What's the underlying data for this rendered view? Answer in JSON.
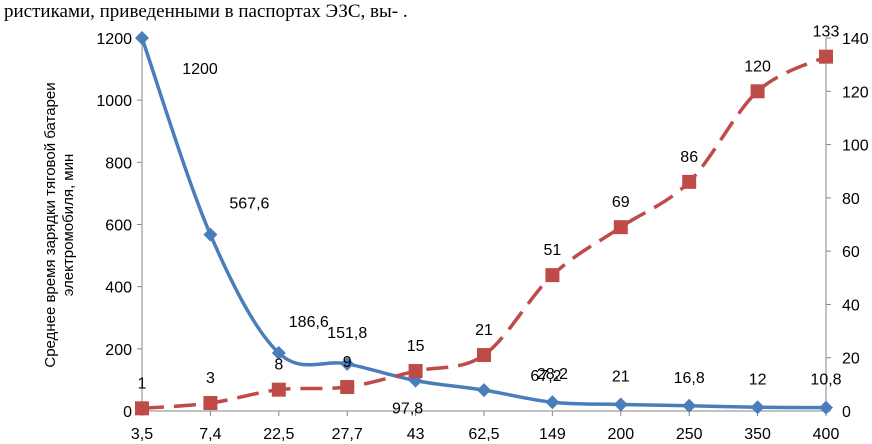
{
  "caption": "ристиками, приведенными в паспортах ЭЗС, вы-            .",
  "chart_data": {
    "type": "line",
    "categories": [
      "3,5",
      "7,4",
      "22,5",
      "27,7",
      "43",
      "62,5",
      "149",
      "200",
      "250",
      "350",
      "400"
    ],
    "ylabel": "Среднее время зарядки тяговой батареи электромобиля, мин",
    "ylim": [
      0,
      1200
    ],
    "y2lim": [
      0,
      140
    ],
    "yticks": [
      0,
      200,
      400,
      600,
      800,
      1000,
      1200
    ],
    "y2ticks": [
      0,
      20,
      40,
      60,
      80,
      100,
      120,
      140
    ],
    "grid": false,
    "series": [
      {
        "axis": "left",
        "color": "#4A7EBB",
        "marker": "diamond",
        "style": "solid",
        "values": [
          1200,
          567.6,
          186.6,
          151.8,
          97.8,
          67.2,
          28.2,
          21,
          16.8,
          12,
          10.8
        ],
        "labels": [
          "1200",
          "567,6",
          "186,6",
          "151,8",
          "97,8",
          "67,2",
          "28,2",
          "21",
          "16,8",
          "12",
          "10,8"
        ]
      },
      {
        "axis": "right",
        "color": "#BE4B48",
        "marker": "square",
        "style": "dashed",
        "values": [
          1,
          3,
          8,
          9,
          15,
          21,
          51,
          69,
          86,
          120,
          133
        ],
        "labels": [
          "1",
          "3",
          "8",
          "9",
          "15",
          "21",
          "51",
          "69",
          "86",
          "120",
          "133"
        ]
      }
    ]
  }
}
